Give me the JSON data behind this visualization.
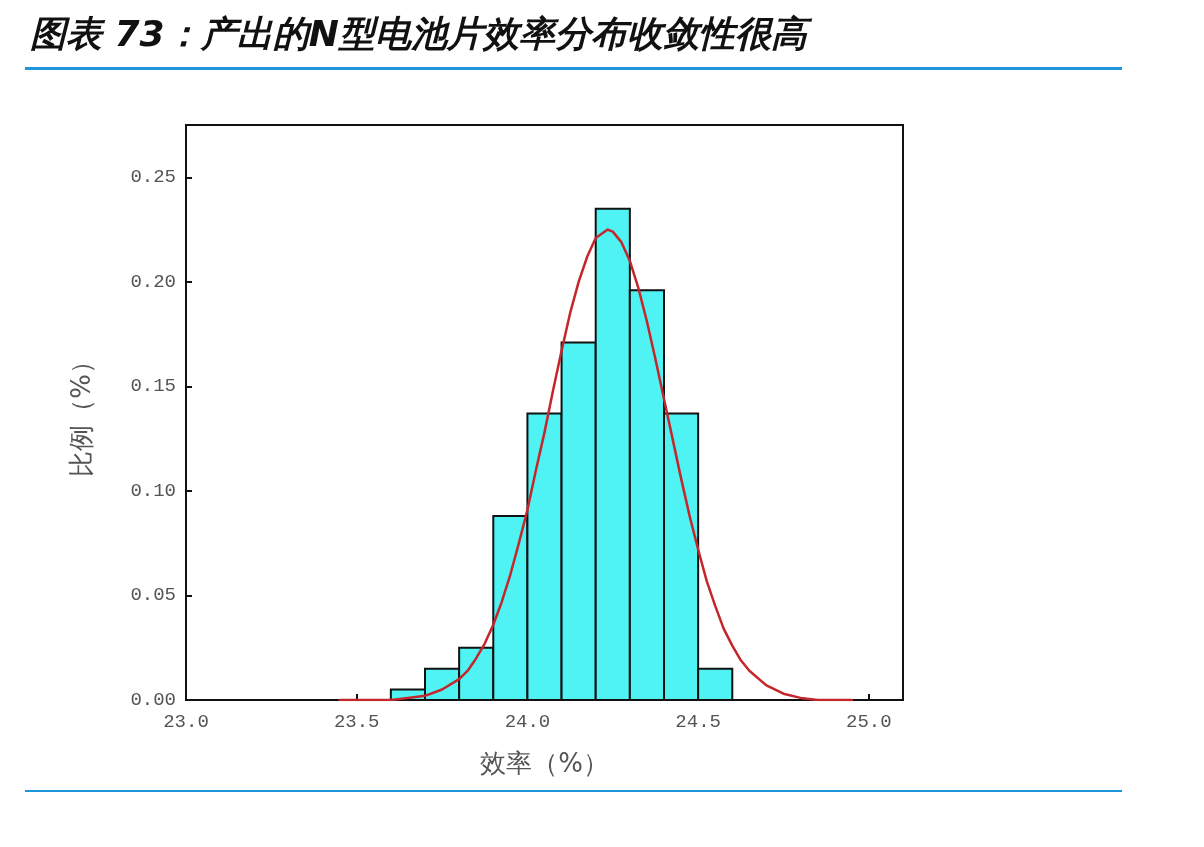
{
  "chart_data": {
    "type": "histogram",
    "title": "图表 73：产出的N型电池片效率分布收敛性很高",
    "xlabel": "效率（%）",
    "ylabel": "比例（%）",
    "bins": [
      23.6,
      23.7,
      23.8,
      23.9,
      24.0,
      24.1,
      24.2,
      24.3,
      24.4,
      24.5,
      24.6
    ],
    "series": [
      {
        "color": "#4ff3f3",
        "values": [
          0.005,
          0.015,
          0.025,
          0.088,
          0.137,
          0.171,
          0.235,
          0.196,
          0.137,
          0.015
        ]
      },
      {
        "type": "line",
        "color": "#c4262c",
        "x": [
          23.45,
          23.5,
          23.55,
          23.6,
          23.65,
          23.7,
          23.75,
          23.8,
          23.825,
          23.85,
          23.875,
          23.9,
          23.925,
          23.95,
          23.975,
          24.0,
          24.025,
          24.05,
          24.075,
          24.1,
          24.125,
          24.15,
          24.175,
          24.2,
          24.235,
          24.25,
          24.275,
          24.3,
          24.325,
          24.35,
          24.375,
          24.4,
          24.425,
          24.45,
          24.475,
          24.5,
          24.525,
          24.55,
          24.575,
          24.6,
          24.625,
          24.65,
          24.7,
          24.75,
          24.8,
          24.85,
          24.9,
          24.95
        ],
        "values": [
          0,
          0,
          0,
          0,
          0.001,
          0.002,
          0.005,
          0.01,
          0.014,
          0.02,
          0.027,
          0.036,
          0.047,
          0.06,
          0.075,
          0.091,
          0.11,
          0.128,
          0.148,
          0.167,
          0.185,
          0.2,
          0.212,
          0.221,
          0.225,
          0.224,
          0.219,
          0.21,
          0.197,
          0.181,
          0.163,
          0.144,
          0.125,
          0.106,
          0.088,
          0.072,
          0.057,
          0.045,
          0.034,
          0.026,
          0.019,
          0.014,
          0.007,
          0.003,
          0.001,
          0,
          0,
          0
        ]
      }
    ],
    "xlim": [
      23.0,
      25.1
    ],
    "xticks": [
      {
        "value": 23,
        "label": "23.0"
      },
      23.5,
      {
        "value": 24,
        "label": "24.0"
      },
      24.5,
      {
        "value": 25,
        "label": "25.0"
      }
    ],
    "ylim": [
      0,
      0.275
    ],
    "yticks": [
      {
        "value": 0,
        "label": "0.00"
      },
      0.05,
      {
        "value": 0.1,
        "label": "0.10"
      },
      0.15,
      {
        "value": 0.2,
        "label": "0.20"
      },
      0.25
    ],
    "marker": "none"
  }
}
